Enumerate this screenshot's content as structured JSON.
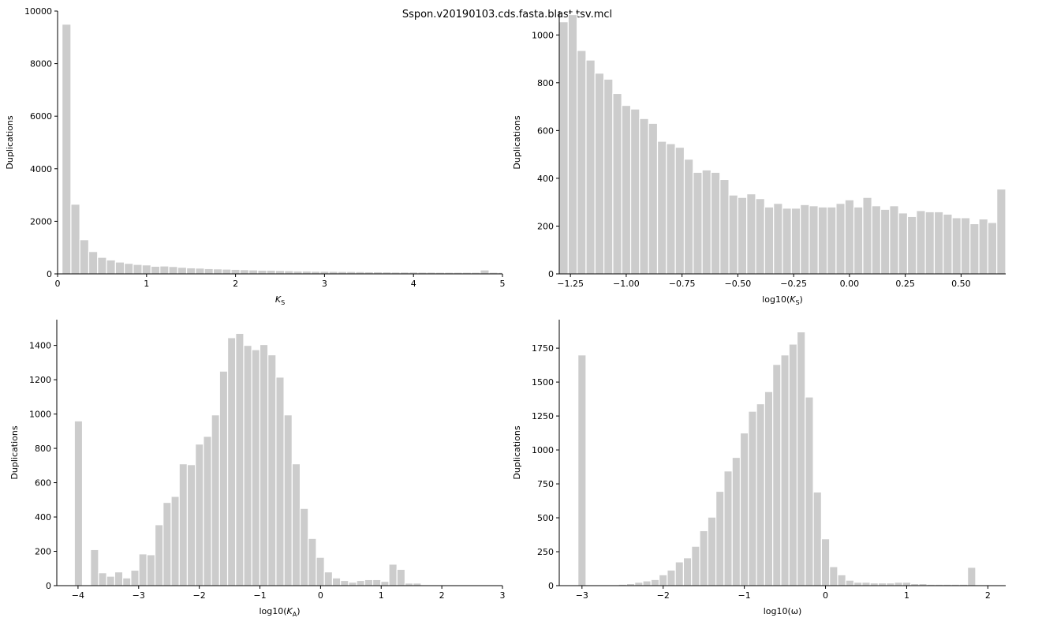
{
  "title": "Sspon.v20190103.cds.fasta.blast.tsv.mcl",
  "chart_data": [
    {
      "type": "bar",
      "xlabel": "K_S",
      "ylabel": "Duplications",
      "xlim": [
        0,
        5
      ],
      "ylim": [
        0,
        10000
      ],
      "xticks": [
        0,
        1,
        2,
        3,
        4,
        5
      ],
      "yticks": [
        0,
        2000,
        4000,
        6000,
        8000,
        10000
      ],
      "bin_start": 0.05,
      "bin_width": 0.1,
      "values": [
        9500,
        2650,
        1300,
        850,
        630,
        530,
        450,
        400,
        360,
        340,
        290,
        300,
        280,
        250,
        230,
        220,
        200,
        190,
        180,
        170,
        160,
        150,
        140,
        140,
        130,
        120,
        110,
        110,
        100,
        100,
        95,
        90,
        90,
        85,
        80,
        80,
        75,
        70,
        70,
        70,
        65,
        65,
        60,
        60,
        60,
        60,
        60,
        150,
        60,
        55
      ]
    },
    {
      "type": "bar",
      "xlabel": "log10(K_S)",
      "ylabel": "Duplications",
      "xlim": [
        -1.3,
        0.7
      ],
      "ylim": [
        0,
        1100
      ],
      "xticks": [
        -1.25,
        -1.0,
        -0.75,
        -0.5,
        -0.25,
        0.0,
        0.25,
        0.5
      ],
      "xticklabels": [
        "−1.25",
        "−1.00",
        "−0.75",
        "−0.50",
        "−0.25",
        "0.00",
        "0.25",
        "0.50"
      ],
      "yticks": [
        0,
        200,
        400,
        600,
        800,
        1000
      ],
      "bin_start": -1.3,
      "bin_width": 0.04,
      "values": [
        1055,
        1085,
        935,
        895,
        840,
        815,
        755,
        705,
        690,
        650,
        630,
        555,
        545,
        530,
        480,
        425,
        435,
        425,
        395,
        330,
        320,
        335,
        315,
        280,
        295,
        275,
        275,
        290,
        285,
        280,
        280,
        295,
        310,
        280,
        320,
        285,
        270,
        285,
        255,
        240,
        265,
        260,
        260,
        250,
        235,
        235,
        210,
        230,
        215,
        355
      ]
    },
    {
      "type": "bar",
      "xlabel": "log10(K_A)",
      "ylabel": "Duplications",
      "xlim": [
        -4.35,
        3.0
      ],
      "ylim": [
        0,
        1550
      ],
      "xticks": [
        -4,
        -3,
        -2,
        -1,
        0,
        1,
        2,
        3
      ],
      "xticklabels": [
        "−4",
        "−3",
        "−2",
        "−1",
        "0",
        "1",
        "2",
        "3"
      ],
      "yticks": [
        0,
        200,
        400,
        600,
        800,
        1000,
        1200,
        1400
      ],
      "bin_start": -4.06,
      "bin_width": 0.133,
      "values": [
        960,
        0,
        210,
        75,
        55,
        80,
        45,
        90,
        185,
        180,
        355,
        485,
        520,
        710,
        705,
        825,
        870,
        995,
        1250,
        1445,
        1470,
        1400,
        1375,
        1405,
        1345,
        1215,
        995,
        710,
        450,
        275,
        165,
        80,
        45,
        30,
        20,
        30,
        35,
        35,
        25,
        125,
        95,
        15,
        15,
        0,
        0,
        0,
        0,
        0,
        0,
        0,
        0,
        0,
        0,
        0,
        0
      ]
    },
    {
      "type": "bar",
      "xlabel": "log10(ω)",
      "ylabel": "Duplications",
      "xlim": [
        -3.28,
        2.22
      ],
      "ylim": [
        0,
        1960
      ],
      "xticks": [
        -3,
        -2,
        -1,
        0,
        1,
        2
      ],
      "xticklabels": [
        "−3",
        "−2",
        "−1",
        "0",
        "1",
        "2"
      ],
      "yticks": [
        0,
        250,
        500,
        750,
        1000,
        1250,
        1500,
        1750
      ],
      "bin_start": -3.05,
      "bin_width": 0.1,
      "values": [
        1700,
        0,
        0,
        5,
        5,
        10,
        15,
        25,
        35,
        45,
        80,
        115,
        175,
        205,
        290,
        405,
        505,
        695,
        845,
        945,
        1125,
        1285,
        1340,
        1430,
        1630,
        1700,
        1780,
        1870,
        1390,
        690,
        345,
        140,
        80,
        40,
        25,
        25,
        20,
        20,
        20,
        25,
        25,
        15,
        15,
        10,
        10,
        10,
        10,
        10,
        135
      ]
    }
  ]
}
